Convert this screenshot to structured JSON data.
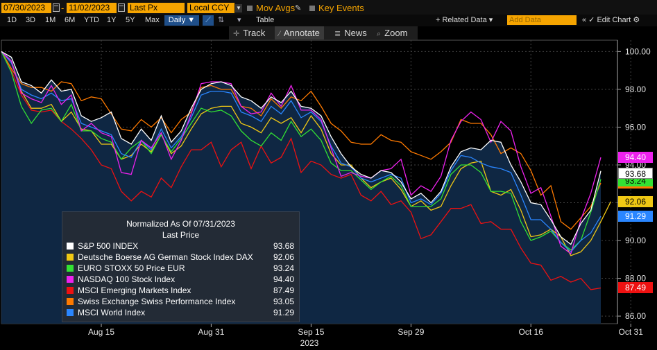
{
  "toolbar": {
    "start_date": "07/30/2023",
    "end_date": "11/02/2023",
    "field": "Last Px",
    "currency": "Local CCY",
    "mov_avgs": "Mov Avgs",
    "key_events": "Key Events",
    "ranges": [
      "1D",
      "3D",
      "1M",
      "6M",
      "YTD",
      "1Y",
      "5Y",
      "Max"
    ],
    "frequency": "Daily ▼",
    "table": "Table",
    "related_data": "+ Related Data ▾",
    "add_data_placeholder": "Add Data",
    "edit_chart": "« ✓ Edit Chart ⚙",
    "track": "Track",
    "annotate": "Annotate",
    "news": "News",
    "zoom": "Zoom"
  },
  "legend": {
    "title": "Normalized As Of 07/31/2023",
    "subtitle": "Last Price"
  },
  "chart_data": {
    "type": "line",
    "ylim": [
      85.6,
      100.6
    ],
    "yticks": [
      "100.00",
      "98.00",
      "96.00",
      "94.00",
      "92.00",
      "90.00",
      "88.00",
      "86.00"
    ],
    "xticks": [
      "Aug 15",
      "Aug 31",
      "Sep 15",
      "Sep 29",
      "Oct 16",
      "Oct 31"
    ],
    "xlabel": "2023",
    "series": [
      {
        "name": "S&P 500 INDEX",
        "color": "#ffffff",
        "last": "93.68",
        "values": [
          100.0,
          99.7,
          98.4,
          98.2,
          97.8,
          98.5,
          97.9,
          98.0,
          96.6,
          96.3,
          96.5,
          96.8,
          95.4,
          95.1,
          95.9,
          95.3,
          96.6,
          95.2,
          95.8,
          97.0,
          98.0,
          98.3,
          98.4,
          98.2,
          97.6,
          97.4,
          97.0,
          97.6,
          97.3,
          97.9,
          97.1,
          97.0,
          96.6,
          95.5,
          94.6,
          93.9,
          93.5,
          93.3,
          93.7,
          93.6,
          93.1,
          92.2,
          92.5,
          92.0,
          92.6,
          93.9,
          94.7,
          94.9,
          94.8,
          95.3,
          95.2,
          94.0,
          93.1,
          92.0,
          91.9,
          91.1,
          90.2,
          89.8,
          90.9,
          91.6,
          93.68
        ]
      },
      {
        "name": "Deutsche Boerse AG German Stock Index DAX",
        "color": "#f0c814",
        "last": "92.06",
        "values": [
          100.0,
          99.5,
          97.9,
          97.0,
          97.0,
          97.2,
          96.3,
          96.8,
          95.9,
          95.8,
          95.1,
          95.1,
          94.3,
          94.5,
          95.1,
          94.7,
          95.6,
          94.6,
          95.0,
          95.9,
          96.7,
          97.0,
          97.1,
          97.1,
          96.2,
          96.0,
          95.7,
          96.5,
          96.2,
          96.5,
          95.7,
          96.6,
          95.9,
          94.6,
          94.0,
          94.0,
          93.3,
          92.8,
          93.1,
          93.3,
          92.7,
          91.8,
          92.1,
          91.6,
          91.8,
          92.9,
          93.8,
          94.1,
          94.2,
          92.6,
          92.4,
          92.7,
          91.6,
          90.2,
          90.3,
          90.6,
          90.2,
          89.2,
          89.4,
          90.0,
          91.0,
          92.06
        ]
      },
      {
        "name": "EURO STOXX 50 Price EUR",
        "color": "#33e233",
        "last": "93.24",
        "values": [
          100.0,
          98.9,
          97.1,
          96.2,
          96.9,
          97.0,
          96.3,
          97.2,
          95.8,
          95.8,
          95.4,
          95.2,
          94.3,
          94.9,
          95.3,
          94.6,
          95.6,
          94.7,
          95.4,
          96.2,
          97.0,
          96.8,
          96.9,
          96.6,
          95.8,
          95.3,
          95.0,
          95.7,
          95.3,
          96.3,
          95.5,
          95.9,
          95.3,
          94.1,
          93.7,
          93.7,
          93.2,
          92.7,
          93.1,
          93.4,
          92.9,
          91.8,
          91.8,
          91.8,
          92.2,
          93.5,
          94.0,
          94.0,
          93.6,
          92.6,
          92.6,
          92.5,
          91.0,
          90.0,
          90.2,
          90.5,
          89.9,
          89.5,
          90.0,
          91.5,
          93.24
        ]
      },
      {
        "name": "NASDAQ 100 Stock Index",
        "color": "#ee22ee",
        "last": "94.40",
        "values": [
          100.0,
          99.5,
          97.8,
          97.5,
          97.3,
          98.2,
          97.2,
          97.7,
          95.8,
          96.2,
          95.7,
          95.5,
          93.6,
          93.5,
          95.3,
          94.9,
          95.7,
          94.3,
          95.3,
          96.7,
          98.3,
          98.4,
          98.4,
          98.3,
          97.1,
          96.7,
          96.8,
          97.8,
          97.1,
          98.2,
          96.9,
          96.9,
          96.4,
          94.9,
          93.4,
          93.6,
          93.4,
          93.3,
          93.7,
          93.8,
          94.3,
          92.4,
          92.9,
          92.6,
          93.4,
          95.3,
          96.3,
          96.8,
          96.4,
          95.2,
          96.3,
          95.8,
          93.9,
          92.5,
          92.8,
          91.3,
          89.7,
          89.3,
          91.1,
          92.5,
          94.4
        ]
      },
      {
        "name": "MSCI Emerging Markets Index",
        "color": "#ee1111",
        "last": "87.49",
        "values": [
          100.0,
          99.0,
          97.7,
          96.9,
          96.8,
          96.9,
          96.3,
          95.9,
          95.4,
          94.8,
          94.0,
          93.8,
          92.6,
          92.1,
          92.6,
          92.3,
          93.3,
          92.8,
          93.9,
          94.8,
          94.8,
          95.2,
          93.9,
          94.8,
          95.2,
          93.8,
          95.0,
          94.1,
          94.4,
          95.4,
          93.6,
          94.2,
          94.0,
          93.5,
          93.3,
          93.5,
          92.4,
          92.1,
          92.6,
          91.9,
          92.1,
          91.5,
          90.1,
          90.3,
          91.0,
          91.7,
          91.7,
          91.9,
          90.9,
          91.0,
          90.6,
          90.6,
          89.6,
          88.8,
          88.7,
          87.9,
          88.1,
          87.8,
          88.0,
          87.4,
          87.49
        ]
      },
      {
        "name": "Swiss Exchange Swiss Performance Index",
        "color": "#ff7a00",
        "last": "93.05",
        "values": [
          100.0,
          99.1,
          98.3,
          98.1,
          98.1,
          97.9,
          98.4,
          98.3,
          97.4,
          97.6,
          97.5,
          96.7,
          95.9,
          95.8,
          96.4,
          96.0,
          96.5,
          95.7,
          96.4,
          96.8,
          98.1,
          98.2,
          98.0,
          98.0,
          97.1,
          97.0,
          96.6,
          97.5,
          97.0,
          97.6,
          97.4,
          97.9,
          97.1,
          96.2,
          95.8,
          95.2,
          95.1,
          95.1,
          95.6,
          95.3,
          95.2,
          94.7,
          94.5,
          94.3,
          94.7,
          95.2,
          96.4,
          96.2,
          96.2,
          95.6,
          94.6,
          94.9,
          94.6,
          93.7,
          92.4,
          92.9,
          91.0,
          90.6,
          91.2,
          91.8,
          93.05
        ]
      },
      {
        "name": "MSCI World Index",
        "color": "#2a86ff",
        "last": "91.29",
        "values": [
          100.0,
          99.4,
          98.0,
          97.7,
          97.5,
          97.8,
          97.4,
          97.5,
          96.2,
          96.0,
          95.8,
          95.6,
          94.6,
          94.4,
          95.3,
          94.8,
          95.9,
          94.9,
          95.5,
          96.5,
          97.7,
          97.9,
          97.9,
          97.8,
          96.8,
          96.6,
          96.3,
          97.1,
          96.7,
          97.4,
          96.5,
          96.8,
          96.3,
          95.0,
          94.1,
          93.9,
          93.3,
          93.1,
          93.3,
          93.5,
          93.3,
          92.0,
          92.2,
          91.9,
          92.5,
          93.7,
          94.5,
          94.4,
          94.1,
          93.9,
          93.8,
          93.6,
          92.4,
          91.1,
          91.1,
          90.6,
          89.9,
          89.4,
          90.0,
          90.4,
          91.29
        ]
      }
    ]
  }
}
